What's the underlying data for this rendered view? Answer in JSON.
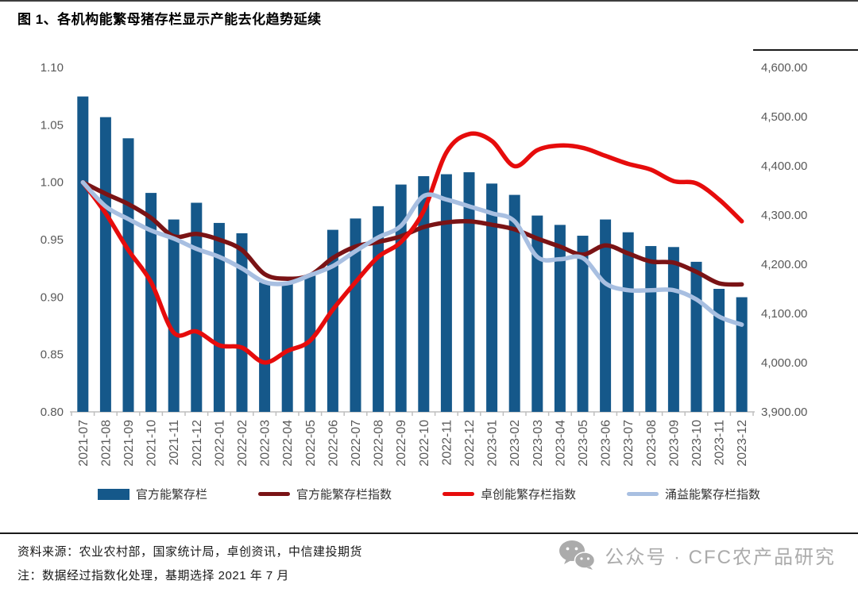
{
  "page": {
    "title": "图 1、各机构能繁母猪存栏显示产能去化趋势延续",
    "footer": {
      "source": "资料来源：农业农村部，国家统计局，卓创资讯，中信建投期货",
      "note": "注：数据经过指数化处理，基期选择 2021 年 7 月"
    },
    "watermark": {
      "icon": "wechat-icon",
      "text": "公众号 · CFC农产品研究"
    }
  },
  "chart_data": {
    "type": "bar+line combo, dual axis",
    "title": "图 1、各机构能繁母猪存栏显示产能去化趋势延续",
    "grid": false,
    "legend_position": "bottom",
    "axis_text_color": "#595959",
    "categories": [
      "2021-07",
      "2021-08",
      "2021-09",
      "2021-10",
      "2021-11",
      "2021-12",
      "2022-01",
      "2022-02",
      "2022-03",
      "2022-04",
      "2022-05",
      "2022-06",
      "2022-07",
      "2022-08",
      "2022-09",
      "2022-10",
      "2022-11",
      "2022-12",
      "2023-01",
      "2023-02",
      "2023-03",
      "2023-04",
      "2023-05",
      "2023-06",
      "2023-07",
      "2023-08",
      "2023-09",
      "2023-10",
      "2023-11",
      "2023-12"
    ],
    "left_axis": {
      "min": 0.8,
      "max": 1.1,
      "step": 0.05,
      "format": "0.00"
    },
    "right_axis": {
      "min": 3900,
      "max": 4600,
      "step": 100,
      "format": "#,##0.00"
    },
    "bar_series": {
      "key": "official-inventory",
      "name": "官方能繁存栏",
      "axis": "right",
      "color": "#15588A",
      "values": [
        4541,
        4499,
        4456,
        4345,
        4291,
        4325,
        4284,
        4263,
        4163,
        4161,
        4177,
        4270,
        4293,
        4318,
        4362,
        4379,
        4383,
        4387,
        4364,
        4341,
        4299,
        4280,
        4258,
        4291,
        4265,
        4237,
        4235,
        4205,
        4150,
        4133
      ]
    },
    "line_series": [
      {
        "key": "official-index",
        "name": "官方能繁存栏指数",
        "axis": "left",
        "color": "#7A1315",
        "values": [
          1.0,
          0.99,
          0.981,
          0.969,
          0.953,
          0.955,
          0.95,
          0.941,
          0.92,
          0.916,
          0.919,
          0.934,
          0.944,
          0.948,
          0.953,
          0.961,
          0.965,
          0.966,
          0.963,
          0.959,
          0.951,
          0.944,
          0.937,
          0.945,
          0.938,
          0.931,
          0.93,
          0.922,
          0.912,
          0.911
        ]
      },
      {
        "key": "zhuochuang-index",
        "name": "卓创能繁存栏指数",
        "axis": "left",
        "color": "#E60C0C",
        "values": [
          1.0,
          0.973,
          0.941,
          0.913,
          0.869,
          0.87,
          0.858,
          0.856,
          0.843,
          0.853,
          0.862,
          0.889,
          0.913,
          0.935,
          0.948,
          0.975,
          1.026,
          1.042,
          1.036,
          1.014,
          1.028,
          1.032,
          1.03,
          1.023,
          1.016,
          1.011,
          1.001,
          0.999,
          0.985,
          0.966
        ]
      },
      {
        "key": "yongyi-index",
        "name": "涌益能繁存栏指数",
        "axis": "left",
        "color": "#A8BFE1",
        "values": [
          1.0,
          0.979,
          0.968,
          0.958,
          0.951,
          0.942,
          0.935,
          0.925,
          0.913,
          0.912,
          0.919,
          0.927,
          0.94,
          0.952,
          0.962,
          0.988,
          0.985,
          0.979,
          0.973,
          0.966,
          0.935,
          0.933,
          0.934,
          0.912,
          0.906,
          0.906,
          0.906,
          0.898,
          0.883,
          0.876
        ]
      }
    ]
  }
}
